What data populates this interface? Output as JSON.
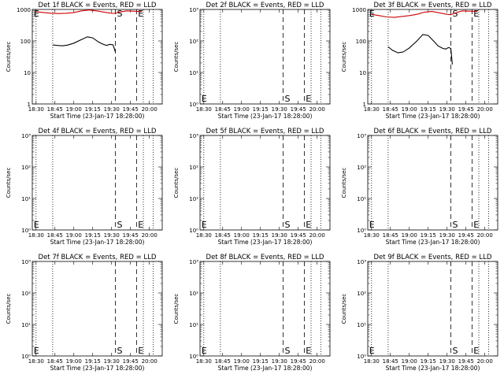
{
  "chart_data": [
    {
      "type": "line",
      "title": "Det 1f BLACK = Events, RED = LLD",
      "xlabel": "Start Time (23-Jan-17 18:28:00)",
      "ylabel": "Counts/sec",
      "yscale": "log",
      "xlim": [
        18.45,
        20.17
      ],
      "ylim": [
        1,
        1000
      ],
      "xticks": [
        18.5,
        18.75,
        19.0,
        19.25,
        19.5,
        19.75,
        20.0
      ],
      "xtick_labels": [
        "18:30",
        "18:45",
        "19:00",
        "19:15",
        "19:30",
        "19:45",
        "20:00"
      ],
      "yticks": [
        1,
        10,
        100,
        1000
      ],
      "ytick_labels": [
        "1",
        "10",
        "100",
        "1000"
      ],
      "markers": {
        "s_label": "S",
        "e_label": "E"
      },
      "series": [
        {
          "color": "#000000",
          "x": [
            18.72,
            18.78,
            18.85,
            18.92,
            19.0,
            19.1,
            19.18,
            19.25,
            19.32,
            19.38,
            19.43,
            19.48,
            19.52,
            19.55
          ],
          "y": [
            75,
            72,
            70,
            74,
            85,
            110,
            135,
            125,
            95,
            80,
            72,
            78,
            75,
            45
          ]
        },
        {
          "color": "#cc0000",
          "x": [
            18.5,
            18.6,
            18.7,
            18.8,
            18.9,
            19.0,
            19.1,
            19.2,
            19.3,
            19.4,
            19.5,
            19.55,
            19.6,
            19.7,
            19.8,
            19.9
          ],
          "y": [
            850,
            800,
            760,
            740,
            760,
            800,
            900,
            960,
            900,
            820,
            760,
            750,
            820,
            900,
            880,
            850
          ]
        }
      ]
    },
    {
      "type": "line",
      "title": "Det 2f BLACK = Events, RED = LLD",
      "xlabel": "Start Time (23-Jan-17 18:28:00)",
      "ylabel": "Counts/sec",
      "yscale": "log",
      "xlim": [
        18.45,
        20.17
      ],
      "ylim": [
        1,
        1000
      ],
      "xticks": [
        18.5,
        18.75,
        19.0,
        19.25,
        19.5,
        19.75,
        20.0
      ],
      "xtick_labels": [
        "18:30",
        "18:45",
        "19:00",
        "19:15",
        "19:30",
        "19:45",
        "20:00"
      ],
      "yticks": [
        1,
        10,
        100,
        1000
      ],
      "ytick_labels": [
        "10⁰",
        "10¹",
        "10²",
        "10³"
      ],
      "markers": {
        "s_label": "S",
        "e_label": "E"
      },
      "series": []
    },
    {
      "type": "line",
      "title": "Det 3f BLACK = Events, RED = LLD",
      "xlabel": "Start Time (23-Jan-17 18:28:00)",
      "ylabel": "Counts/sec",
      "yscale": "log",
      "xlim": [
        18.45,
        20.17
      ],
      "ylim": [
        1,
        1000
      ],
      "xticks": [
        18.5,
        18.75,
        19.0,
        19.25,
        19.5,
        19.75,
        20.0
      ],
      "xtick_labels": [
        "18:30",
        "18:45",
        "19:00",
        "19:15",
        "19:30",
        "19:45",
        "20:00"
      ],
      "yticks": [
        1,
        10,
        100,
        1000
      ],
      "ytick_labels": [
        "1",
        "10",
        "100",
        "1000"
      ],
      "markers": {
        "s_label": "S",
        "e_label": "E"
      },
      "series": [
        {
          "color": "#000000",
          "x": [
            18.72,
            18.78,
            18.85,
            18.92,
            19.0,
            19.1,
            19.18,
            19.25,
            19.32,
            19.38,
            19.43,
            19.48,
            19.52,
            19.55,
            19.57
          ],
          "y": [
            65,
            50,
            42,
            45,
            60,
            100,
            160,
            150,
            100,
            70,
            60,
            55,
            62,
            58,
            18
          ]
        },
        {
          "color": "#cc0000",
          "x": [
            18.5,
            18.6,
            18.7,
            18.8,
            18.9,
            19.0,
            19.1,
            19.2,
            19.3,
            19.4,
            19.5,
            19.55,
            19.6,
            19.7,
            19.8,
            19.9
          ],
          "y": [
            700,
            640,
            580,
            560,
            600,
            640,
            700,
            820,
            860,
            780,
            700,
            680,
            760,
            900,
            880,
            860
          ]
        }
      ]
    },
    {
      "type": "line",
      "title": "Det 4f BLACK = Events, RED = LLD",
      "xlabel": "Start Time (23-Jan-17 18:28:00)",
      "ylabel": "Counts/sec",
      "yscale": "log",
      "xlim": [
        18.45,
        20.17
      ],
      "ylim": [
        1,
        1000
      ],
      "xticks": [
        18.5,
        18.75,
        19.0,
        19.25,
        19.5,
        19.75,
        20.0
      ],
      "xtick_labels": [
        "18:30",
        "18:45",
        "19:00",
        "19:15",
        "19:30",
        "19:45",
        "20:00"
      ],
      "yticks": [
        1,
        10,
        100,
        1000
      ],
      "ytick_labels": [
        "10⁰",
        "10¹",
        "10²",
        "10³"
      ],
      "markers": {
        "s_label": "S",
        "e_label": "E"
      },
      "series": []
    },
    {
      "type": "line",
      "title": "Det 5f BLACK = Events, RED = LLD",
      "xlabel": "Start Time (23-Jan-17 18:28:00)",
      "ylabel": "Counts/sec",
      "yscale": "log",
      "xlim": [
        18.45,
        20.17
      ],
      "ylim": [
        1,
        1000
      ],
      "xticks": [
        18.5,
        18.75,
        19.0,
        19.25,
        19.5,
        19.75,
        20.0
      ],
      "xtick_labels": [
        "18:30",
        "18:45",
        "19:00",
        "19:15",
        "19:30",
        "19:45",
        "20:00"
      ],
      "yticks": [
        1,
        10,
        100,
        1000
      ],
      "ytick_labels": [
        "10⁰",
        "10¹",
        "10²",
        "10³"
      ],
      "markers": {
        "s_label": "S",
        "e_label": "E"
      },
      "series": []
    },
    {
      "type": "line",
      "title": "Det 6f BLACK = Events, RED = LLD",
      "xlabel": "Start Time (23-Jan-17 18:28:00)",
      "ylabel": "Counts/sec",
      "yscale": "log",
      "xlim": [
        18.45,
        20.17
      ],
      "ylim": [
        1,
        1000
      ],
      "xticks": [
        18.5,
        18.75,
        19.0,
        19.25,
        19.5,
        19.75,
        20.0
      ],
      "xtick_labels": [
        "18:30",
        "18:45",
        "19:00",
        "19:15",
        "19:30",
        "19:45",
        "20:00"
      ],
      "yticks": [
        1,
        10,
        100,
        1000
      ],
      "ytick_labels": [
        "10⁰",
        "10¹",
        "10²",
        "10³"
      ],
      "markers": {
        "s_label": "S",
        "e_label": "E"
      },
      "series": []
    },
    {
      "type": "line",
      "title": "Det 7f BLACK = Events, RED = LLD",
      "xlabel": "Start Time (23-Jan-17 18:28:00)",
      "ylabel": "Counts/sec",
      "yscale": "log",
      "xlim": [
        18.45,
        20.17
      ],
      "ylim": [
        1,
        1000
      ],
      "xticks": [
        18.5,
        18.75,
        19.0,
        19.25,
        19.5,
        19.75,
        20.0
      ],
      "xtick_labels": [
        "18:30",
        "18:45",
        "19:00",
        "19:15",
        "19:30",
        "19:45",
        "20:00"
      ],
      "yticks": [
        1,
        10,
        100,
        1000
      ],
      "ytick_labels": [
        "10⁰",
        "10¹",
        "10²",
        "10³"
      ],
      "markers": {
        "s_label": "S",
        "e_label": "E"
      },
      "series": []
    },
    {
      "type": "line",
      "title": "Det 8f BLACK = Events, RED = LLD",
      "xlabel": "Start Time (23-Jan-17 18:28:00)",
      "ylabel": "Counts/sec",
      "yscale": "log",
      "xlim": [
        18.45,
        20.17
      ],
      "ylim": [
        1,
        1000
      ],
      "xticks": [
        18.5,
        18.75,
        19.0,
        19.25,
        19.5,
        19.75,
        20.0
      ],
      "xtick_labels": [
        "18:30",
        "18:45",
        "19:00",
        "19:15",
        "19:30",
        "19:45",
        "20:00"
      ],
      "yticks": [
        1,
        10,
        100,
        1000
      ],
      "ytick_labels": [
        "10⁰",
        "10¹",
        "10²",
        "10³"
      ],
      "markers": {
        "s_label": "S",
        "e_label": "E"
      },
      "series": []
    },
    {
      "type": "line",
      "title": "Det 9f BLACK = Events, RED = LLD",
      "xlabel": "Start Time (23-Jan-17 18:28:00)",
      "ylabel": "Counts/sec",
      "yscale": "log",
      "xlim": [
        18.45,
        20.17
      ],
      "ylim": [
        1,
        1000
      ],
      "xticks": [
        18.5,
        18.75,
        19.0,
        19.25,
        19.5,
        19.75,
        20.0
      ],
      "xtick_labels": [
        "18:30",
        "18:45",
        "19:00",
        "19:15",
        "19:30",
        "19:45",
        "20:00"
      ],
      "yticks": [
        1,
        10,
        100,
        1000
      ],
      "ytick_labels": [
        "10⁰",
        "10¹",
        "10²",
        "10³"
      ],
      "markers": {
        "s_label": "S",
        "e_label": "E"
      },
      "series": []
    }
  ],
  "vertical_lines": {
    "dotted": [
      18.5,
      18.72,
      19.92,
      20.05
    ],
    "dashed": [
      19.55,
      19.83
    ]
  },
  "marker_positions": {
    "e_left": 18.5,
    "s": 19.57,
    "e_right": 19.85
  }
}
